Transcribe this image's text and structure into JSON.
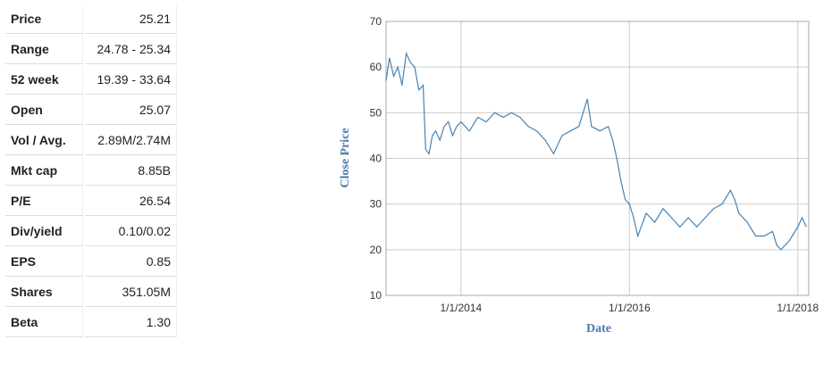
{
  "table": {
    "rows": [
      [
        "Price",
        "25.21"
      ],
      [
        "Range",
        "24.78 - 25.34"
      ],
      [
        "52 week",
        "19.39 - 33.64"
      ],
      [
        "Open",
        "25.07"
      ],
      [
        "Vol / Avg.",
        "2.89M/2.74M"
      ],
      [
        "Mkt cap",
        "8.85B"
      ],
      [
        "P/E",
        "26.54"
      ],
      [
        "Div/yield",
        "0.10/0.02"
      ],
      [
        "EPS",
        "0.85"
      ],
      [
        "Shares",
        "351.05M"
      ],
      [
        "Beta",
        "1.30"
      ]
    ]
  },
  "chart_data": {
    "type": "line",
    "xlabel": "Date",
    "ylabel": "Close Price",
    "color": "#4682b4",
    "grid": true,
    "xlim": [
      2013.11,
      2018.13
    ],
    "ylim": [
      10,
      70
    ],
    "xticks": [
      {
        "value": 2014,
        "label": "1/1/2014"
      },
      {
        "value": 2016,
        "label": "1/1/2016"
      },
      {
        "value": 2018,
        "label": "1/1/2018"
      }
    ],
    "yticks": [
      10,
      20,
      30,
      40,
      50,
      60,
      70
    ],
    "x": [
      2013.11,
      2013.15,
      2013.2,
      2013.25,
      2013.3,
      2013.35,
      2013.4,
      2013.45,
      2013.5,
      2013.55,
      2013.58,
      2013.62,
      2013.66,
      2013.7,
      2013.75,
      2013.8,
      2013.85,
      2013.9,
      2013.95,
      2014.0,
      2014.1,
      2014.2,
      2014.3,
      2014.4,
      2014.5,
      2014.6,
      2014.7,
      2014.8,
      2014.9,
      2015.0,
      2015.1,
      2015.2,
      2015.3,
      2015.4,
      2015.45,
      2015.5,
      2015.55,
      2015.65,
      2015.75,
      2015.8,
      2015.85,
      2015.9,
      2015.95,
      2016.0,
      2016.05,
      2016.1,
      2016.2,
      2016.3,
      2016.4,
      2016.5,
      2016.6,
      2016.7,
      2016.8,
      2016.9,
      2017.0,
      2017.1,
      2017.2,
      2017.25,
      2017.3,
      2017.4,
      2017.5,
      2017.6,
      2017.7,
      2017.75,
      2017.8,
      2017.9,
      2018.0,
      2018.05,
      2018.1
    ],
    "values": [
      57,
      62,
      58,
      60,
      56,
      63,
      61,
      60,
      55,
      56,
      42,
      41,
      45,
      46,
      44,
      47,
      48,
      45,
      47,
      48,
      46,
      49,
      48,
      50,
      49,
      50,
      49,
      47,
      46,
      44,
      41,
      45,
      46,
      47,
      50,
      53,
      47,
      46,
      47,
      44,
      40,
      35,
      31,
      30,
      27,
      23,
      28,
      26,
      29,
      27,
      25,
      27,
      25,
      27,
      29,
      30,
      33,
      31,
      28,
      26,
      23,
      23,
      24,
      21,
      20,
      22,
      25,
      27,
      25
    ]
  }
}
